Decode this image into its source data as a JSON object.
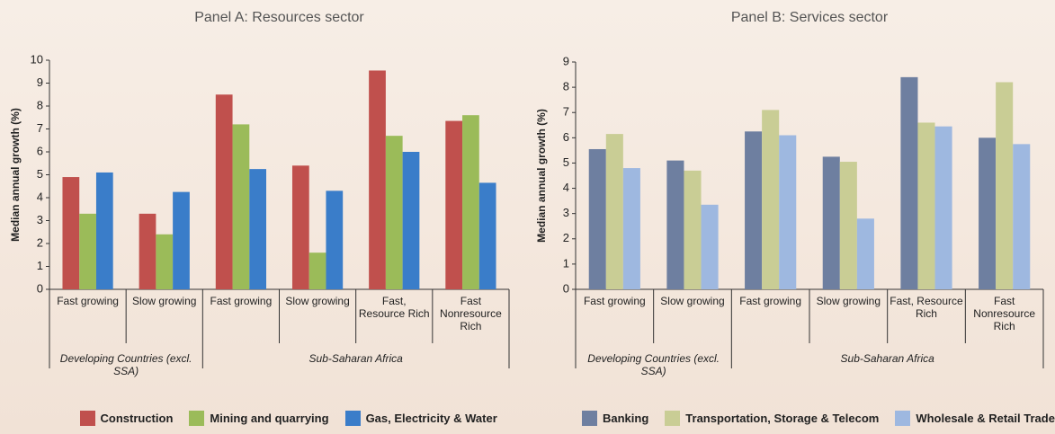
{
  "chart_data": [
    {
      "type": "bar",
      "title": "Panel A: Resources sector",
      "y_label": "Median annual growth (%)",
      "category_groups": [
        {
          "name": "Developing Countries (excl. SSA)",
          "categories": [
            "Fast growing",
            "Slow growing"
          ]
        },
        {
          "name": "Sub-Saharan Africa",
          "categories": [
            "Fast growing",
            "Slow growing",
            "Fast, Resource Rich",
            "Fast Nonresource Rich"
          ]
        }
      ],
      "series": [
        {
          "name": "Construction",
          "color": "#c0504d",
          "values": [
            4.9,
            3.3,
            8.5,
            5.4,
            9.55,
            7.35
          ]
        },
        {
          "name": "Mining and quarrying",
          "color": "#9bbb59",
          "values": [
            3.3,
            2.4,
            7.2,
            1.6,
            6.7,
            7.6
          ]
        },
        {
          "name": "Gas, Electricity & Water",
          "color": "#3a7dc9",
          "values": [
            5.1,
            4.25,
            5.25,
            4.3,
            6.0,
            4.65
          ]
        }
      ],
      "ylim": [
        0,
        10
      ],
      "yticks": [
        0,
        1,
        2,
        3,
        4,
        5,
        6,
        7,
        8,
        9,
        10
      ],
      "legend": "bottom"
    },
    {
      "type": "bar",
      "title": "Panel B: Services sector",
      "y_label": "Median annual growth (%)",
      "category_groups": [
        {
          "name": "Developing Countries (excl. SSA)",
          "categories": [
            "Fast growing",
            "Slow growing"
          ]
        },
        {
          "name": "Sub-Saharan Africa",
          "categories": [
            "Fast growing",
            "Slow growing",
            "Fast, Resource Rich",
            "Fast Nonresource Rich"
          ]
        }
      ],
      "series": [
        {
          "name": "Banking",
          "color": "#6e7fa0",
          "values": [
            5.55,
            5.1,
            6.25,
            5.25,
            8.4,
            6.0
          ]
        },
        {
          "name": "Transportation, Storage & Telecom",
          "color": "#c9cd95",
          "values": [
            6.15,
            4.7,
            7.1,
            5.05,
            6.6,
            8.2
          ]
        },
        {
          "name": "Wholesale & Retail Trade",
          "color": "#9eb8e0",
          "values": [
            4.8,
            3.35,
            6.1,
            2.8,
            6.45,
            5.75
          ]
        }
      ],
      "ylim": [
        0,
        9
      ],
      "yticks": [
        0,
        1,
        2,
        3,
        4,
        5,
        6,
        7,
        8,
        9
      ],
      "legend": "bottom"
    }
  ]
}
